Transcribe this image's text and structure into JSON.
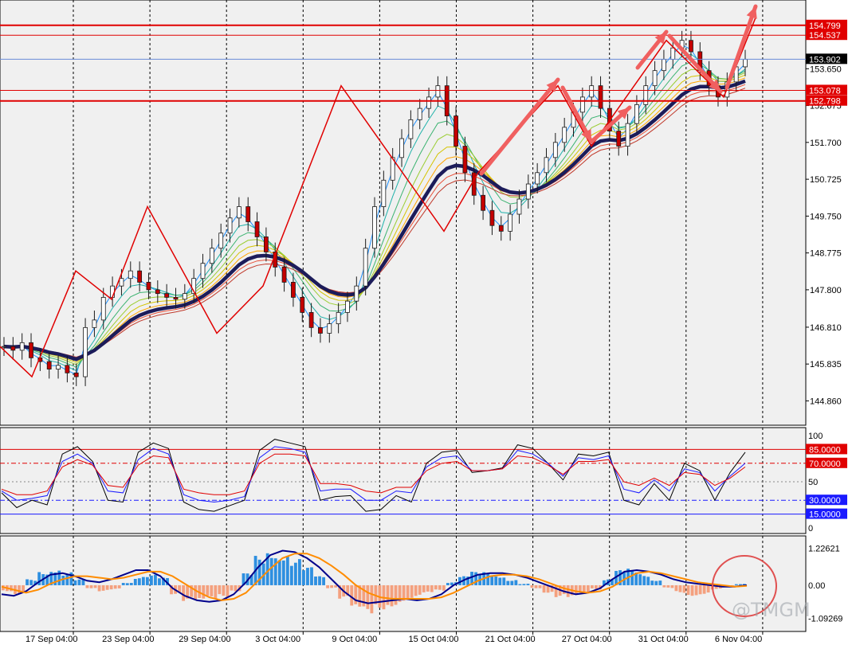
{
  "chart_data": [
    {
      "panel": "price",
      "type": "candlestick",
      "title": "",
      "y_ticks": [
        "153.650",
        "152.675",
        "151.700",
        "150.725",
        "149.750",
        "148.775",
        "147.800",
        "146.810",
        "145.835",
        "144.860"
      ],
      "price_tags": [
        {
          "label": "154.799",
          "value": 154.799,
          "style": "red-line"
        },
        {
          "label": "154.537",
          "value": 154.537,
          "style": "red-line"
        },
        {
          "label": "153.902",
          "value": 153.902,
          "style": "current"
        },
        {
          "label": "153.078",
          "value": 153.078,
          "style": "red-line"
        },
        {
          "label": "152.798",
          "value": 152.798,
          "style": "red-line"
        }
      ],
      "ylim": [
        144.3,
        155.3
      ],
      "zigzag_points": [
        {
          "t": 0,
          "price": 146.3
        },
        {
          "t": 40,
          "price": 145.5
        },
        {
          "t": 95,
          "price": 148.3
        },
        {
          "t": 140,
          "price": 147.55
        },
        {
          "t": 185,
          "price": 150.0
        },
        {
          "t": 272,
          "price": 146.65
        },
        {
          "t": 330,
          "price": 147.9
        },
        {
          "t": 428,
          "price": 153.2
        },
        {
          "t": 557,
          "price": 149.35
        },
        {
          "t": 600,
          "price": 150.9
        },
        {
          "t": 700,
          "price": 153.2
        },
        {
          "t": 742,
          "price": 151.6
        },
        {
          "t": 836,
          "price": 154.4
        },
        {
          "t": 908,
          "price": 152.9
        },
        {
          "t": 948,
          "price": 155.0
        }
      ],
      "close_series": [
        146.3,
        146.2,
        146.4,
        146.0,
        145.9,
        145.7,
        145.8,
        145.6,
        145.5,
        146.8,
        147.0,
        147.6,
        147.9,
        148.1,
        148.3,
        148.0,
        147.8,
        147.7,
        147.6,
        147.55,
        147.7,
        148.1,
        148.5,
        148.9,
        149.3,
        149.7,
        150.0,
        149.6,
        149.2,
        148.8,
        148.4,
        148.0,
        147.6,
        147.2,
        146.8,
        146.65,
        146.9,
        147.2,
        147.5,
        147.9,
        148.9,
        150.0,
        150.7,
        151.3,
        151.8,
        152.3,
        152.6,
        152.9,
        153.2,
        152.4,
        151.6,
        150.9,
        150.3,
        149.9,
        149.5,
        149.35,
        149.8,
        150.2,
        150.6,
        150.9,
        151.3,
        151.7,
        152.1,
        152.5,
        152.9,
        153.2,
        152.6,
        152.0,
        151.6,
        152.2,
        152.7,
        153.2,
        153.6,
        153.9,
        154.2,
        154.4,
        154.1,
        153.6,
        153.2,
        152.9,
        153.3,
        153.7,
        153.9
      ],
      "x_ticks": [
        "17 Sep 04:00",
        "23 Sep 04:00",
        "29 Sep 04:00",
        "3 Oct 04:00",
        "9 Oct 04:00",
        "15 Oct 04:00",
        "21 Oct 04:00",
        "27 Oct 04:00",
        "31 Oct 04:00",
        "6 Nov 04:00"
      ]
    },
    {
      "panel": "oscillator",
      "type": "line",
      "y_ticks": [
        "100",
        "50",
        "0"
      ],
      "levels": [
        {
          "label": "85.0000",
          "value": 85,
          "color": "#e00000"
        },
        {
          "label": "70.0000",
          "value": 70,
          "color": "#e00000"
        },
        {
          "label": "30.0000",
          "value": 30,
          "color": "#1a1aff"
        },
        {
          "label": "15.0000",
          "value": 15,
          "color": "#1a1aff"
        }
      ],
      "ylim": [
        0,
        100
      ],
      "series": [
        {
          "color": "#000000",
          "values": [
            38,
            22,
            30,
            25,
            80,
            88,
            72,
            30,
            28,
            82,
            92,
            86,
            28,
            20,
            18,
            24,
            30,
            84,
            96,
            92,
            88,
            30,
            34,
            35,
            18,
            20,
            35,
            28,
            70,
            82,
            84,
            60,
            62,
            65,
            90,
            86,
            70,
            52,
            80,
            78,
            82,
            30,
            25,
            48,
            30,
            70,
            62,
            30,
            60,
            82
          ]
        },
        {
          "color": "#1a1aff",
          "values": [
            40,
            30,
            32,
            35,
            72,
            80,
            70,
            40,
            38,
            74,
            86,
            80,
            36,
            30,
            28,
            30,
            34,
            76,
            88,
            86,
            82,
            40,
            42,
            42,
            30,
            30,
            40,
            38,
            66,
            76,
            78,
            62,
            62,
            64,
            84,
            80,
            70,
            56,
            76,
            74,
            78,
            42,
            38,
            52,
            40,
            64,
            60,
            40,
            56,
            70
          ]
        },
        {
          "color": "#e00000",
          "values": [
            42,
            36,
            36,
            40,
            66,
            74,
            68,
            46,
            44,
            68,
            78,
            76,
            42,
            38,
            36,
            36,
            40,
            70,
            80,
            80,
            78,
            48,
            48,
            46,
            40,
            38,
            44,
            44,
            62,
            70,
            72,
            62,
            62,
            64,
            78,
            76,
            68,
            58,
            72,
            72,
            74,
            50,
            46,
            54,
            46,
            60,
            58,
            46,
            54,
            66
          ]
        }
      ]
    },
    {
      "panel": "macd",
      "type": "histogram+line",
      "y_ticks": [
        "1.22621",
        "0.00",
        "-1.09269"
      ],
      "ylim": [
        -1.35,
        1.4
      ],
      "histogram": [
        -0.2,
        -0.3,
        0.2,
        0.5,
        0.6,
        0.45,
        0.2,
        -0.1,
        -0.2,
        -0.15,
        0.1,
        0.3,
        0.35,
        0.25,
        -0.3,
        -0.55,
        -0.6,
        -0.5,
        -0.4,
        -0.2,
        0.4,
        1.0,
        1.25,
        1.15,
        0.9,
        0.6,
        0.3,
        -0.1,
        -0.5,
        -0.9,
        -1.0,
        -0.8,
        -0.7,
        -0.55,
        -0.45,
        -0.3,
        -0.2,
        0.1,
        0.3,
        0.45,
        0.45,
        0.35,
        0.2,
        0.05,
        -0.1,
        -0.25,
        -0.4,
        -0.45,
        -0.3,
        -0.15,
        0.2,
        0.5,
        0.55,
        0.4,
        0.2,
        -0.1,
        -0.25,
        -0.35,
        -0.3,
        -0.15,
        -0.05,
        0.05
      ],
      "series": [
        {
          "color": "#00008b",
          "values": [
            -0.3,
            -0.35,
            -0.2,
            0.1,
            0.35,
            0.4,
            0.3,
            0.15,
            0.1,
            0.2,
            0.35,
            0.5,
            0.5,
            0.3,
            -0.1,
            -0.35,
            -0.5,
            -0.55,
            -0.5,
            -0.3,
            0.1,
            0.6,
            1.0,
            1.15,
            1.1,
            0.9,
            0.6,
            0.2,
            -0.2,
            -0.5,
            -0.6,
            -0.55,
            -0.5,
            -0.45,
            -0.5,
            -0.45,
            -0.3,
            0.0,
            0.2,
            0.35,
            0.4,
            0.4,
            0.35,
            0.25,
            0.1,
            -0.05,
            -0.2,
            -0.3,
            -0.25,
            -0.1,
            0.2,
            0.45,
            0.5,
            0.45,
            0.35,
            0.2,
            0.1,
            0.05,
            0.0,
            -0.05,
            -0.05,
            0.0
          ]
        },
        {
          "color": "#ff8c00",
          "values": [
            -0.05,
            -0.15,
            -0.25,
            -0.15,
            0.05,
            0.2,
            0.3,
            0.3,
            0.25,
            0.2,
            0.25,
            0.35,
            0.45,
            0.45,
            0.3,
            0.05,
            -0.2,
            -0.4,
            -0.5,
            -0.45,
            -0.25,
            0.15,
            0.55,
            0.9,
            1.05,
            1.05,
            0.9,
            0.65,
            0.35,
            0.0,
            -0.25,
            -0.4,
            -0.45,
            -0.45,
            -0.45,
            -0.45,
            -0.4,
            -0.25,
            -0.05,
            0.15,
            0.3,
            0.35,
            0.35,
            0.3,
            0.2,
            0.05,
            -0.1,
            -0.2,
            -0.25,
            -0.2,
            -0.05,
            0.2,
            0.4,
            0.45,
            0.4,
            0.3,
            0.2,
            0.1,
            0.05,
            0.0,
            -0.05,
            -0.02
          ]
        }
      ]
    }
  ],
  "watermark": "@TMGM"
}
